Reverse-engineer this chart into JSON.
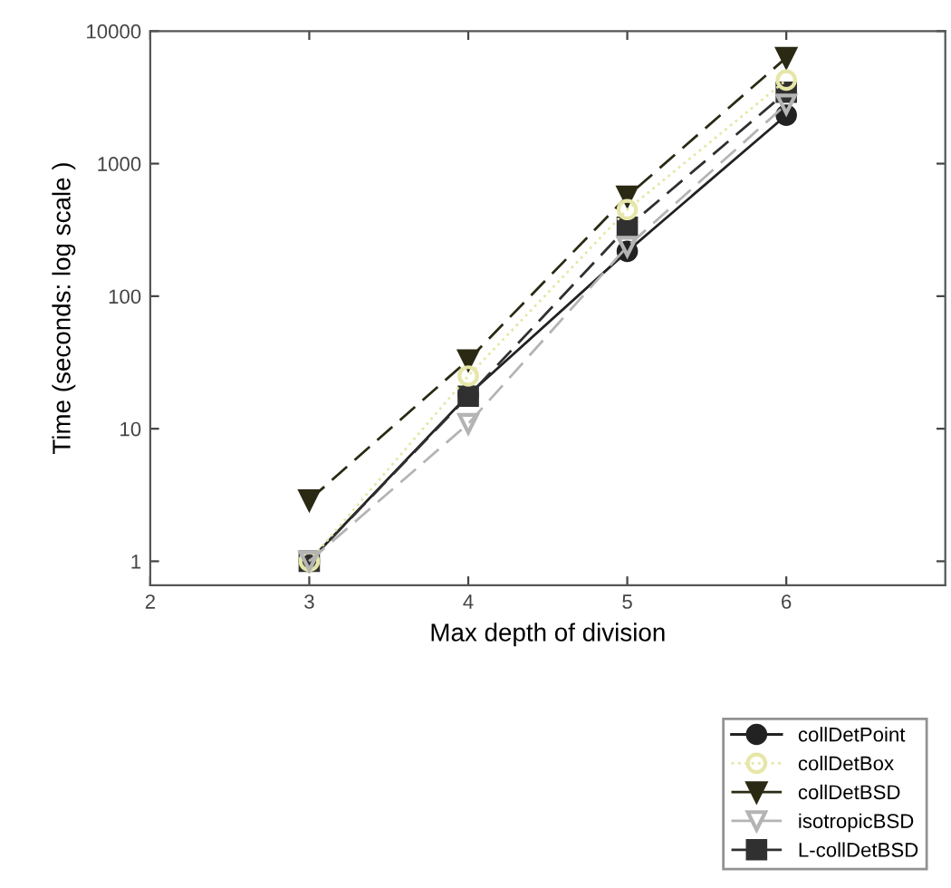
{
  "chart_data": {
    "type": "line",
    "xlabel": "Max depth of division",
    "ylabel": "Time (seconds: log scale )",
    "x": [
      3,
      4,
      5,
      6
    ],
    "series": [
      {
        "name": "collDetPoint",
        "color": "#222222",
        "values": [
          1,
          18,
          218,
          2320
        ],
        "marker": "circle",
        "line_style": "solid"
      },
      {
        "name": "collDetBox",
        "color": "#e6e6a8",
        "values": [
          1,
          25,
          450,
          4270
        ],
        "marker": "circle",
        "line_style": "dotted"
      },
      {
        "name": "collDetBSD",
        "color": "#2a2a14",
        "values": [
          2.9,
          33,
          567,
          6300
        ],
        "marker": "triangle",
        "line_style": "dashed"
      },
      {
        "name": "isotropicBSD",
        "color": "#b4b4b4",
        "values": [
          1,
          10.9,
          237,
          2800
        ],
        "marker": "triangle",
        "line_style": "dashed"
      },
      {
        "name": "L-collDetBSD",
        "color": "#303030",
        "values": [
          1,
          17.6,
          331,
          3460
        ],
        "marker": "square",
        "line_style": "dashed"
      }
    ],
    "log": "y",
    "xlim": [
      2,
      7
    ],
    "xticks": [
      2,
      3,
      4,
      5,
      6
    ],
    "ylim": [
      0.66,
      10000
    ],
    "yticks": [
      1,
      10,
      100,
      1000,
      10000
    ],
    "grid": false,
    "legend": "bottom right"
  }
}
